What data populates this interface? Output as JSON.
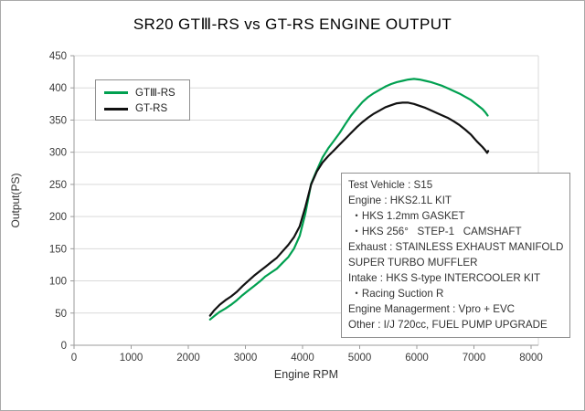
{
  "title": "SR20 GTⅢ-RS vs GT-RS ENGINE OUTPUT",
  "infobox": {
    "lines": [
      "Test Vehicle : S15",
      "Engine : HKS2.1L KIT",
      " ・HKS 1.2mm GASKET",
      " ・HKS 256°   STEP-1   CAMSHAFT",
      "Exhaust : STAINLESS EXHAUST MANIFOLD",
      "SUPER TURBO MUFFLER",
      "Intake : HKS S-type INTERCOOLER KIT",
      " ・Racing Suction R",
      "Engine Managerment : Vpro + EVC",
      "Other : I/J 720cc, FUEL PUMP UPGRADE"
    ]
  },
  "chart_data": {
    "type": "line",
    "title": "SR20 GTⅢ-RS vs GT-RS ENGINE OUTPUT",
    "xlabel": "Engine RPM",
    "ylabel": "Output(PS)",
    "xlim": [
      0,
      8128
    ],
    "ylim": [
      0,
      450
    ],
    "xticks": [
      0,
      1000,
      2000,
      3000,
      4000,
      5000,
      6000,
      7000,
      8000
    ],
    "yticks": [
      0,
      50,
      100,
      150,
      200,
      250,
      300,
      350,
      400,
      450
    ],
    "grid": "horizontal",
    "legend_position": "top-left",
    "axis_color": "#9b9b9b",
    "grid_color": "#d9d9d9",
    "tick_label_color": "#3a3a3a",
    "series": [
      {
        "name": "GTⅢ-RS",
        "color": "#00a050",
        "points": [
          [
            2380,
            40
          ],
          [
            2450,
            45
          ],
          [
            2550,
            52
          ],
          [
            2650,
            57
          ],
          [
            2750,
            63
          ],
          [
            2850,
            70
          ],
          [
            2950,
            78
          ],
          [
            3050,
            85
          ],
          [
            3150,
            92
          ],
          [
            3250,
            99
          ],
          [
            3350,
            107
          ],
          [
            3450,
            113
          ],
          [
            3550,
            119
          ],
          [
            3650,
            128
          ],
          [
            3750,
            137
          ],
          [
            3850,
            150
          ],
          [
            3950,
            170
          ],
          [
            4050,
            205
          ],
          [
            4150,
            251
          ],
          [
            4250,
            272
          ],
          [
            4350,
            292
          ],
          [
            4450,
            306
          ],
          [
            4550,
            318
          ],
          [
            4650,
            330
          ],
          [
            4750,
            344
          ],
          [
            4850,
            357
          ],
          [
            4950,
            368
          ],
          [
            5050,
            378
          ],
          [
            5150,
            386
          ],
          [
            5250,
            392
          ],
          [
            5350,
            397
          ],
          [
            5450,
            402
          ],
          [
            5550,
            406
          ],
          [
            5650,
            409
          ],
          [
            5750,
            411
          ],
          [
            5850,
            413
          ],
          [
            5950,
            414
          ],
          [
            6050,
            413
          ],
          [
            6150,
            411
          ],
          [
            6250,
            409
          ],
          [
            6350,
            406
          ],
          [
            6450,
            403
          ],
          [
            6550,
            399
          ],
          [
            6650,
            395
          ],
          [
            6750,
            391
          ],
          [
            6850,
            386
          ],
          [
            6950,
            381
          ],
          [
            7050,
            374
          ],
          [
            7150,
            367
          ],
          [
            7200,
            362
          ],
          [
            7240,
            357
          ]
        ]
      },
      {
        "name": "GT-RS",
        "color": "#111111",
        "points": [
          [
            2380,
            46
          ],
          [
            2450,
            54
          ],
          [
            2550,
            63
          ],
          [
            2650,
            70
          ],
          [
            2750,
            76
          ],
          [
            2850,
            83
          ],
          [
            2950,
            92
          ],
          [
            3050,
            100
          ],
          [
            3150,
            108
          ],
          [
            3250,
            115
          ],
          [
            3350,
            122
          ],
          [
            3450,
            129
          ],
          [
            3550,
            136
          ],
          [
            3650,
            146
          ],
          [
            3750,
            156
          ],
          [
            3850,
            168
          ],
          [
            3950,
            185
          ],
          [
            4050,
            215
          ],
          [
            4150,
            250
          ],
          [
            4250,
            270
          ],
          [
            4350,
            284
          ],
          [
            4450,
            294
          ],
          [
            4550,
            303
          ],
          [
            4650,
            312
          ],
          [
            4750,
            321
          ],
          [
            4850,
            330
          ],
          [
            4950,
            339
          ],
          [
            5050,
            347
          ],
          [
            5150,
            354
          ],
          [
            5250,
            360
          ],
          [
            5350,
            365
          ],
          [
            5450,
            370
          ],
          [
            5550,
            373
          ],
          [
            5650,
            376
          ],
          [
            5750,
            377
          ],
          [
            5850,
            377
          ],
          [
            5950,
            375
          ],
          [
            6050,
            372
          ],
          [
            6150,
            369
          ],
          [
            6250,
            365
          ],
          [
            6350,
            361
          ],
          [
            6450,
            357
          ],
          [
            6550,
            353
          ],
          [
            6650,
            348
          ],
          [
            6750,
            342
          ],
          [
            6850,
            335
          ],
          [
            6950,
            327
          ],
          [
            7050,
            317
          ],
          [
            7150,
            308
          ],
          [
            7200,
            303
          ],
          [
            7230,
            299
          ],
          [
            7250,
            302
          ]
        ]
      }
    ]
  }
}
